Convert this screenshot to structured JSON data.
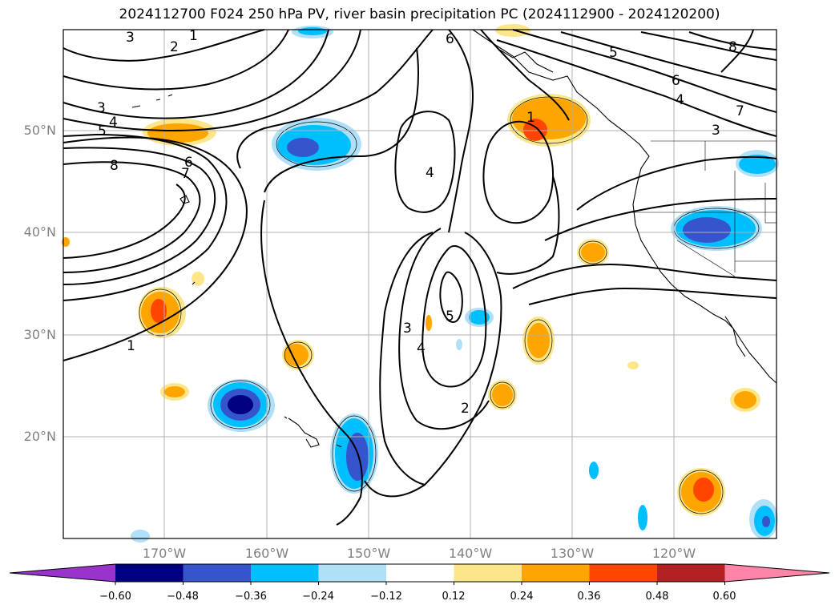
{
  "title": "2024112700 F024 250 hPa PV, river basin precipitation PC (2024112900 - 2024120200)",
  "lat_labels": [
    "50°N",
    "40°N",
    "30°N",
    "20°N"
  ],
  "lon_labels": [
    "170°W",
    "160°W",
    "150°W",
    "140°W",
    "130°W",
    "120°W"
  ],
  "contour_labels": [
    "1",
    "2",
    "3",
    "4",
    "5",
    "6",
    "7",
    "8"
  ],
  "colorbar": {
    "ticks": [
      "−0.60",
      "−0.48",
      "−0.36",
      "−0.24",
      "−0.12",
      "0.12",
      "0.24",
      "0.36",
      "0.48",
      "0.60"
    ],
    "colors": [
      "#9a33cc",
      "#000080",
      "#3655cc",
      "#00bfff",
      "#b0e0f8",
      "#ffffff",
      "#fde68a",
      "#ffa500",
      "#ff4500",
      "#b22222",
      "#ff85a8"
    ]
  }
}
